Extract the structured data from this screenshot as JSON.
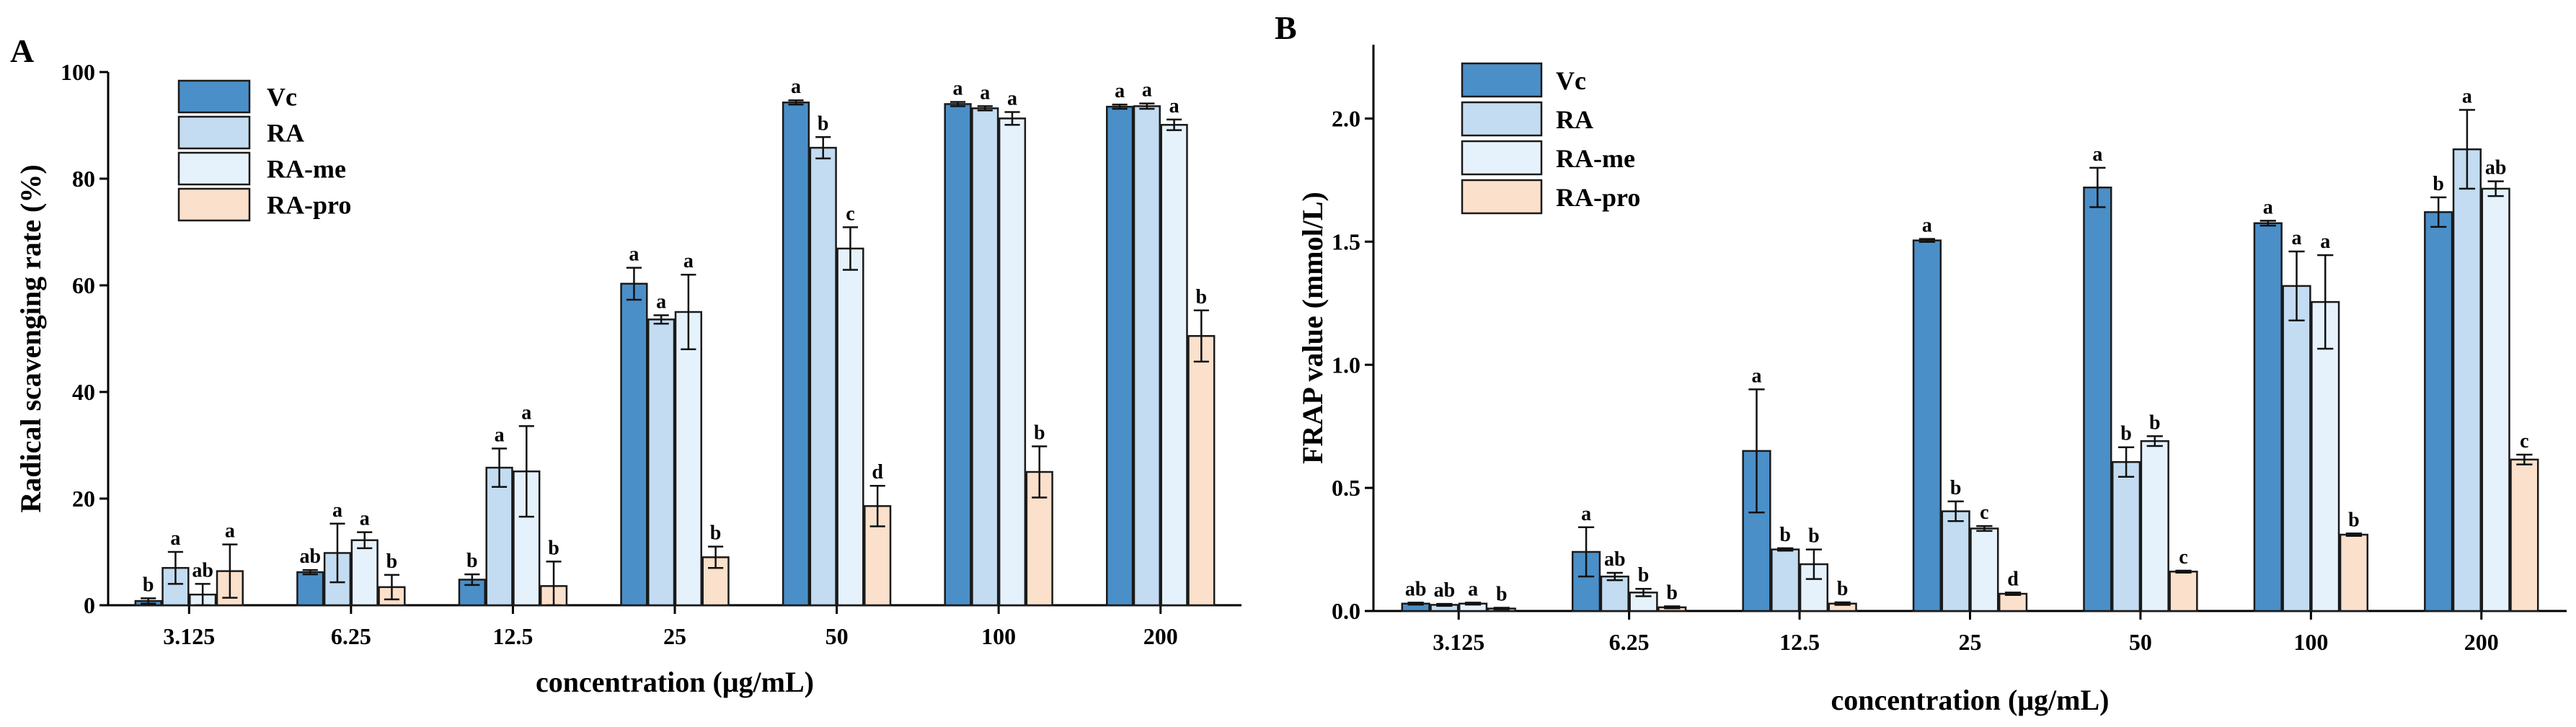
{
  "colors": {
    "Vc": "#4b8fc8",
    "RA": "#c3dcf1",
    "RA-me": "#e6f2fb",
    "RA-pro": "#fbe0cb"
  },
  "chart_data": [
    {
      "type": "bar",
      "panel_label": "A",
      "title": "",
      "xlabel": "concentration (μg/mL)",
      "ylabel": "Radical scavenging rate (%)",
      "ylim": [
        0,
        100
      ],
      "yticks": [
        "0",
        "20",
        "40",
        "60",
        "80",
        "100"
      ],
      "categories": [
        "3.125",
        "6.25",
        "12.5",
        "25",
        "50",
        "100",
        "200"
      ],
      "legend": [
        "Vc",
        "RA",
        "RA-me",
        "RA-pro"
      ],
      "series": [
        {
          "name": "Vc",
          "values": [
            0.8,
            6.2,
            4.8,
            60.3,
            94.3,
            94.0,
            93.5
          ],
          "errors": [
            0.5,
            0.4,
            1.0,
            3.0,
            0.4,
            0.4,
            0.4
          ],
          "labels": [
            "b",
            "ab",
            "b",
            "a",
            "a",
            "a",
            "a"
          ]
        },
        {
          "name": "RA",
          "values": [
            7.0,
            9.8,
            25.8,
            53.6,
            85.8,
            93.2,
            93.6
          ],
          "errors": [
            3.0,
            5.5,
            3.6,
            0.8,
            2.0,
            0.4,
            0.5
          ],
          "labels": [
            "a",
            "a",
            "a",
            "a",
            "b",
            "a",
            "a"
          ]
        },
        {
          "name": "RA-me",
          "values": [
            2.0,
            12.2,
            25.1,
            55.0,
            66.9,
            91.3,
            90.1
          ],
          "errors": [
            2.0,
            1.5,
            8.5,
            7.0,
            4.0,
            1.2,
            1.0
          ],
          "labels": [
            "ab",
            "a",
            "a",
            "a",
            "c",
            "a",
            "a"
          ]
        },
        {
          "name": "RA-pro",
          "values": [
            6.4,
            3.4,
            3.6,
            9.0,
            18.6,
            25.0,
            50.5
          ],
          "errors": [
            5.0,
            2.3,
            4.6,
            2.0,
            3.8,
            4.8,
            4.8
          ],
          "labels": [
            "a",
            "b",
            "b",
            "b",
            "d",
            "b",
            "b"
          ]
        }
      ]
    },
    {
      "type": "bar",
      "panel_label": "B",
      "title": "",
      "xlabel": "concentration (μg/mL)",
      "ylabel": "FRAP value (mmol/L)",
      "ylim": [
        0,
        2.3
      ],
      "yticks": [
        "0.0",
        "0.5",
        "1.0",
        "1.5",
        "2.0"
      ],
      "categories": [
        "3.125",
        "6.25",
        "12.5",
        "25",
        "50",
        "100",
        "200"
      ],
      "legend": [
        "Vc",
        "RA",
        "RA-me",
        "RA-pro"
      ],
      "series": [
        {
          "name": "Vc",
          "values": [
            0.03,
            0.24,
            0.65,
            1.505,
            1.72,
            1.575,
            1.62
          ],
          "errors": [
            0.004,
            0.1,
            0.25,
            0.006,
            0.08,
            0.01,
            0.06
          ],
          "labels": [
            "ab",
            "a",
            "a",
            "a",
            "a",
            "a",
            "b"
          ]
        },
        {
          "name": "RA",
          "values": [
            0.025,
            0.14,
            0.25,
            0.405,
            0.605,
            1.32,
            1.875
          ],
          "errors": [
            0.004,
            0.015,
            0.005,
            0.04,
            0.06,
            0.14,
            0.16
          ],
          "labels": [
            "ab",
            "ab",
            "b",
            "b",
            "b",
            "a",
            "a"
          ]
        },
        {
          "name": "RA-me",
          "values": [
            0.03,
            0.075,
            0.19,
            0.335,
            0.69,
            1.255,
            1.715
          ],
          "errors": [
            0.004,
            0.015,
            0.06,
            0.01,
            0.02,
            0.19,
            0.03
          ],
          "labels": [
            "a",
            "b",
            "b",
            "c",
            "b",
            "a",
            "ab"
          ]
        },
        {
          "name": "RA-pro",
          "values": [
            0.01,
            0.015,
            0.03,
            0.07,
            0.16,
            0.31,
            0.615
          ],
          "errors": [
            0.003,
            0.004,
            0.005,
            0.005,
            0.004,
            0.005,
            0.02
          ],
          "labels": [
            "b",
            "b",
            "b",
            "d",
            "c",
            "b",
            "c"
          ]
        }
      ]
    }
  ]
}
